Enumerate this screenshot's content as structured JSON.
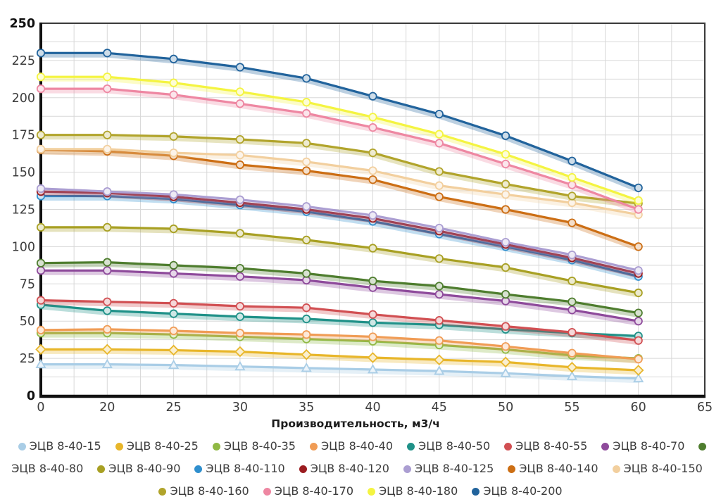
{
  "chart_data": {
    "type": "line",
    "title": "",
    "xlabel": "Производительность, м3/ч",
    "ylabel": "",
    "x_tick_labels": [
      0,
      20,
      25,
      30,
      35,
      40,
      45,
      50,
      55,
      60,
      65
    ],
    "categories": [
      0,
      20,
      25,
      30,
      35,
      40,
      45,
      50,
      55,
      60
    ],
    "y_ticks": [
      0,
      25,
      50,
      75,
      100,
      125,
      150,
      175,
      200,
      225,
      250
    ],
    "ylim": [
      0,
      250
    ],
    "grid": true,
    "legend_position": "bottom",
    "series": [
      {
        "name": "ЭЦВ 8-40-15",
        "color": "#a9cde6",
        "marker": "triangle",
        "values": [
          21,
          21,
          20.5,
          19.5,
          18.5,
          17.5,
          16.5,
          15,
          13,
          11.5
        ]
      },
      {
        "name": "ЭЦВ 8-40-25",
        "color": "#e8b62a",
        "marker": "diamond",
        "values": [
          31,
          31,
          30.5,
          29.5,
          27.5,
          25.5,
          24,
          22.5,
          19,
          17
        ]
      },
      {
        "name": "ЭЦВ 8-40-35",
        "color": "#90b944",
        "marker": "circle",
        "values": [
          42,
          42,
          41,
          39.5,
          38,
          36.5,
          34,
          31,
          27,
          25
        ]
      },
      {
        "name": "ЭЦВ 8-40-40",
        "color": "#f09c55",
        "marker": "circle",
        "values": [
          44,
          44.5,
          43.5,
          42,
          41,
          39.5,
          37,
          33,
          28.5,
          24.5
        ]
      },
      {
        "name": "ЭЦВ 8-40-50",
        "color": "#1f9188",
        "marker": "circle",
        "values": [
          61,
          57,
          55,
          53,
          51.5,
          49,
          47.5,
          44.5,
          42,
          40
        ]
      },
      {
        "name": "ЭЦВ 8-40-55",
        "color": "#d14f52",
        "marker": "circle",
        "values": [
          64,
          63,
          62,
          60,
          59,
          54.5,
          50.5,
          46.5,
          42.5,
          37
        ]
      },
      {
        "name": "ЭЦВ 8-40-70",
        "color": "#8e4a9b",
        "marker": "circle",
        "values": [
          84,
          84,
          82,
          80,
          77.5,
          72.5,
          68,
          63.5,
          57.5,
          50
        ]
      },
      {
        "name": "ЭЦВ 8-40-80",
        "color": "#4e7d2e",
        "marker": "circle",
        "values": [
          89,
          89.5,
          87.5,
          85.5,
          82,
          77,
          73.5,
          68,
          63,
          55.5
        ]
      },
      {
        "name": "ЭЦВ 8-40-90",
        "color": "#a8a023",
        "marker": "circle",
        "values": [
          113,
          113,
          112,
          109,
          104.5,
          99,
          92,
          86,
          77,
          69
        ]
      },
      {
        "name": "ЭЦВ 8-40-110",
        "color": "#2f8fce",
        "marker": "circle",
        "values": [
          134,
          134,
          132,
          128,
          123.5,
          117,
          108.5,
          100,
          91,
          80
        ]
      },
      {
        "name": "ЭЦВ 8-40-120",
        "color": "#9b1c20",
        "marker": "circle",
        "values": [
          137,
          136,
          133.5,
          129.5,
          125,
          119,
          110.5,
          101.5,
          92.5,
          82
        ]
      },
      {
        "name": "ЭЦВ 8-40-125",
        "color": "#ab9ed2",
        "marker": "circle",
        "values": [
          139,
          137,
          135,
          131.5,
          127,
          121,
          112.5,
          103,
          94.5,
          84
        ]
      },
      {
        "name": "ЭЦВ 8-40-140",
        "color": "#cc6e14",
        "marker": "circle",
        "values": [
          165,
          164,
          161,
          155,
          151,
          145,
          133.5,
          125,
          116,
          100
        ]
      },
      {
        "name": "ЭЦВ 8-40-150",
        "color": "#f2cf9e",
        "marker": "circle",
        "values": [
          165.5,
          165.5,
          163,
          161.5,
          157,
          151,
          141,
          135,
          129.5,
          121.5
        ]
      },
      {
        "name": "ЭЦВ 8-40-160",
        "color": "#b1a42b",
        "marker": "circle",
        "values": [
          175,
          175,
          174,
          172,
          169.5,
          163,
          150.5,
          142,
          134,
          129
        ]
      },
      {
        "name": "ЭЦВ 8-40-170",
        "color": "#ee87a2",
        "marker": "circle",
        "values": [
          206,
          206,
          202,
          196,
          189.5,
          180,
          169.5,
          155.5,
          141.5,
          125
        ]
      },
      {
        "name": "ЭЦВ 8-40-180",
        "color": "#f4f441",
        "marker": "circle",
        "values": [
          214,
          214,
          210,
          204,
          197,
          187,
          175.5,
          162,
          146.5,
          131
        ]
      },
      {
        "name": "ЭЦВ 8-40-200",
        "color": "#21639c",
        "marker": "circle",
        "values": [
          230,
          230,
          226,
          220.5,
          213,
          201,
          189,
          174.5,
          157.5,
          139.5
        ]
      }
    ]
  }
}
